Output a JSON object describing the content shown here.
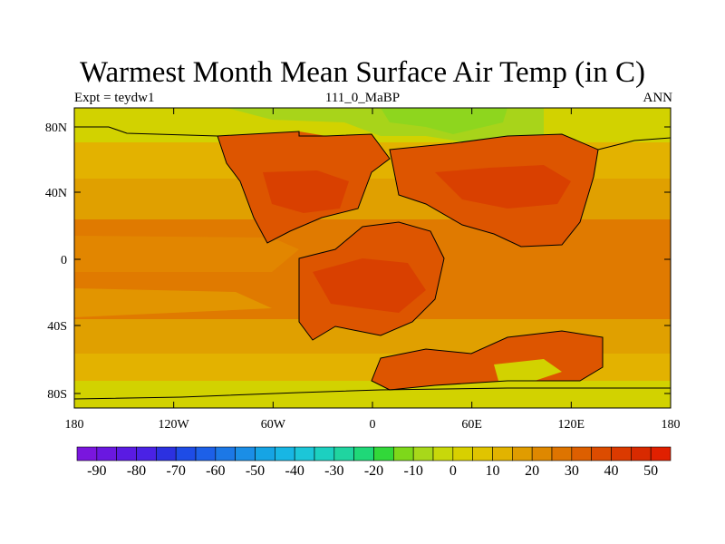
{
  "title": "Warmest Month Mean Surface Air Temp (in C)",
  "subtitle_left": "Expt = teydw1",
  "subtitle_center": "111_0_MaBP",
  "subtitle_right": "ANN",
  "lat_labels": [
    "80N",
    "40N",
    "0",
    "40S",
    "80S"
  ],
  "lon_labels": [
    "180",
    "120W",
    "60W",
    "0",
    "60E",
    "120E",
    "180"
  ],
  "colorbar": {
    "labels": [
      "-90",
      "-80",
      "-70",
      "-60",
      "-50",
      "-40",
      "-30",
      "-20",
      "-10",
      "0",
      "10",
      "20",
      "30",
      "40",
      "50"
    ],
    "colors": [
      "#7a16de",
      "#6a18e0",
      "#5a1be3",
      "#4a22e5",
      "#2c31e0",
      "#1e4ce6",
      "#1d60e8",
      "#1c78e6",
      "#1b8ee6",
      "#16a4e4",
      "#18b6e4",
      "#1cc6d8",
      "#1cd0c0",
      "#20d4a0",
      "#1fd878",
      "#32d83a",
      "#7ed81a",
      "#a8d81a",
      "#c8d80a",
      "#d8d000",
      "#e0c400",
      "#e2b300",
      "#e09c00",
      "#df8800",
      "#de7400",
      "#dd5f00",
      "#dc4c00",
      "#db3a00",
      "#d82a00",
      "#e02000"
    ]
  },
  "colors": {
    "pole_band": "#d2d200",
    "subpolar_band": "#e3b200",
    "mid_band": "#e0a000",
    "tropical_band": "#e07a00",
    "land_hot": "#dd5500",
    "land_very_hot": "#d94000",
    "arctic_cold": "#a8d41a",
    "arctic_green": "#8ed61e"
  }
}
